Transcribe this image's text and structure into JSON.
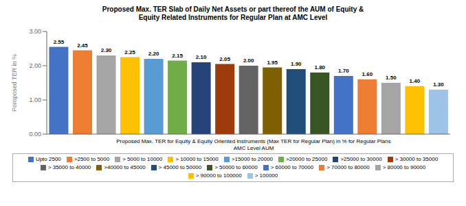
{
  "chart_data": {
    "type": "bar",
    "title": "Proposed Max. TER Slab of Daily Net Assets or part thereof the AUM of Equity &\nEquity Related Instruments for Regular Plan at AMC Level",
    "xlabel": "Proposed Max. TER for Equity & Equity Oriented Instruments (Max TER for Regular Plan) in % for Regular Plans\nAMC Level AUM",
    "ylabel": "Poroposed TER in %",
    "categories": [
      "Upto 2500",
      ">2500 to 5000",
      "> 5000 to 10000",
      "> 10000 to 15000",
      ">15000 to 20000",
      ">20000 to 25000",
      ">25000 to 30000",
      "> 30000 to 35000",
      "> 35000 to 40000",
      ">40000 to 45000",
      "> 45000 to 50000",
      "> 50000 to 60000",
      "> 60000 to 70000",
      "> 70000 to 80000",
      "> 80000 to 90000",
      "> 90000 to 100000",
      "> 100000"
    ],
    "values": [
      2.55,
      2.45,
      2.3,
      2.25,
      2.2,
      2.15,
      2.1,
      2.05,
      2.0,
      1.95,
      1.9,
      1.8,
      1.7,
      1.6,
      1.5,
      1.4,
      1.3
    ],
    "value_labels": [
      "2.55",
      "2.45",
      "2.30",
      "2.25",
      "2.20",
      "2.15",
      "2.10",
      "2.05",
      "2.00",
      "1.95",
      "1.90",
      "1.80",
      "1.70",
      "1.60",
      "1.50",
      "1.40",
      "1.30"
    ],
    "colors": [
      "#4472C4",
      "#ED7D31",
      "#A5A5A5",
      "#FFC000",
      "#5B9BD5",
      "#70AD47",
      "#264478",
      "#9E3B0B",
      "#636363",
      "#7F6000",
      "#1F4E79",
      "#375623",
      "#4472C4",
      "#ED7D31",
      "#A5A5A5",
      "#FFC000",
      "#9DC3E6"
    ],
    "ylim": [
      0.0,
      3.0
    ],
    "yticks": [
      {
        "value": 0,
        "label": "0.00"
      },
      {
        "value": 1,
        "label": "1.00"
      },
      {
        "value": 2,
        "label": "2.00"
      },
      {
        "value": 3,
        "label": "3.00"
      }
    ],
    "legend": "bottom",
    "data_labels": true,
    "tick_labels": "y",
    "grid": false
  }
}
